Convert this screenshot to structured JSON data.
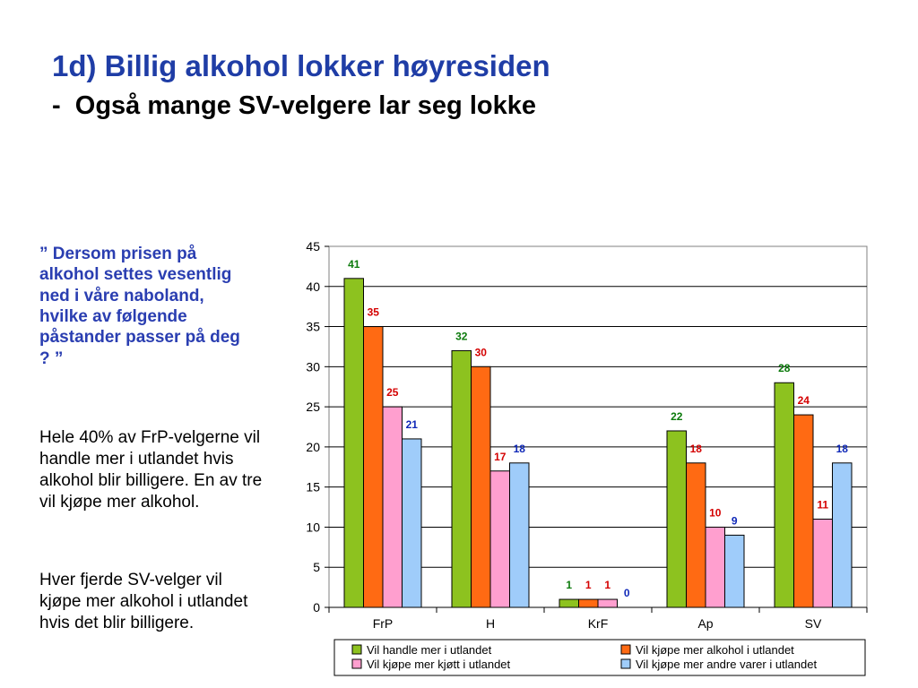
{
  "slide": {
    "title": "1d) Billig alkohol lokker høyresiden",
    "subtitle": "-  Også mange SV-velgere lar seg lokke",
    "question": "” Dersom prisen på alkohol settes vesentlig ned i våre naboland, hvilke av følgende påstander passer på deg ? ”",
    "paragraph1": "Hele 40% av FrP-velgerne vil handle mer i utlandet hvis alkohol blir billigere. En av tre vil kjøpe mer alkohol.",
    "paragraph2": "Hver fjerde SV-velger vil kjøpe mer alkohol i utlandet hvis det blir billigere."
  },
  "colors": {
    "title": "#1f3da6",
    "question": "#2a3eb1"
  },
  "chart_data": {
    "type": "bar",
    "categories": [
      "FrP",
      "H",
      "KrF",
      "Ap",
      "SV"
    ],
    "ylim": [
      0,
      45
    ],
    "yticks": [
      0,
      5,
      10,
      15,
      20,
      25,
      30,
      35,
      40,
      45
    ],
    "grid": true,
    "legend_position": "bottom",
    "series": [
      {
        "name": "Vil handle mer i utlandet",
        "values": [
          41,
          32,
          1,
          22,
          28
        ],
        "color": "#8dc21f",
        "label_color": "#0b7a0b"
      },
      {
        "name": "Vil kjøpe mer alkohol i utlandet",
        "values": [
          35,
          30,
          1,
          18,
          24
        ],
        "color": "#ff6a13",
        "label_color": "#d40000"
      },
      {
        "name": "Vil kjøpe mer kjøtt i utlandet",
        "values": [
          25,
          17,
          1,
          10,
          11
        ],
        "color": "#ff9fcf",
        "label_color": "#d40000"
      },
      {
        "name": "Vil kjøpe mer andre varer i utlandet",
        "values": [
          21,
          18,
          0,
          9,
          18
        ],
        "color": "#9fccfa",
        "label_color": "#1029b8"
      }
    ]
  }
}
